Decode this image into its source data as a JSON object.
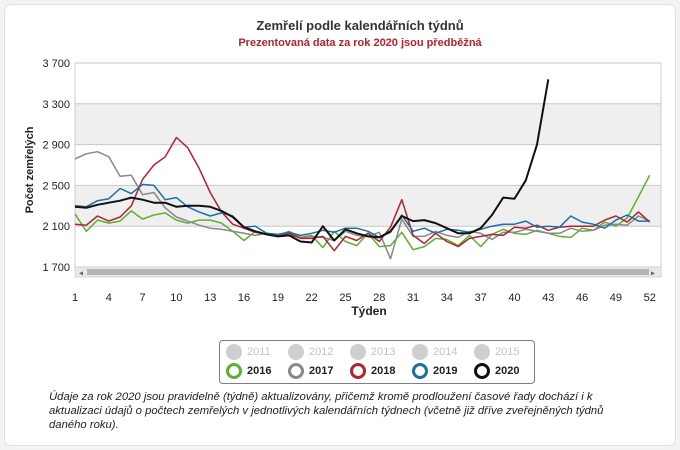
{
  "chart_data": {
    "type": "line",
    "title": "Zemřelí podle kalendářních týdnů",
    "subtitle": "Prezentovaná data za rok 2020 jsou předběžná",
    "xlabel": "Týden",
    "ylabel": "Počet zemřelých",
    "ylim": [
      1700,
      3700
    ],
    "xlim": [
      1,
      53
    ],
    "yticks": [
      1700,
      2100,
      2500,
      2900,
      3300,
      3700
    ],
    "ytick_labels": [
      "1 700",
      "2 100",
      "2 500",
      "2 900",
      "3 300",
      "3 700"
    ],
    "xticks": [
      1,
      4,
      7,
      10,
      13,
      16,
      19,
      22,
      25,
      28,
      31,
      34,
      37,
      40,
      43,
      46,
      49,
      52
    ],
    "grid": true,
    "series": [
      {
        "name": "2016",
        "color": "#5cb030",
        "values": [
          2220,
          2050,
          2160,
          2130,
          2150,
          2250,
          2170,
          2210,
          2230,
          2160,
          2130,
          2160,
          2160,
          2130,
          2050,
          1960,
          2050,
          2020,
          2010,
          2050,
          1990,
          2010,
          1890,
          2050,
          1950,
          1910,
          2030,
          1900,
          1910,
          2040,
          1870,
          1900,
          1980,
          1970,
          1910,
          2010,
          1900,
          2020,
          2070,
          2030,
          2020,
          2060,
          2030,
          2000,
          1990,
          2080,
          2060,
          2140,
          2100,
          2180,
          2390,
          2600
        ]
      },
      {
        "name": "2017",
        "color": "#888888",
        "values": [
          2760,
          2810,
          2830,
          2780,
          2590,
          2600,
          2410,
          2430,
          2280,
          2190,
          2150,
          2110,
          2080,
          2070,
          2050,
          2030,
          2010,
          2030,
          2000,
          2010,
          1990,
          2000,
          1990,
          1960,
          2050,
          2010,
          2000,
          2040,
          1780,
          2170,
          2000,
          2000,
          2050,
          2010,
          1990,
          2050,
          2030,
          1970,
          2040,
          2040,
          2070,
          2050,
          2030,
          2030,
          2080,
          2050,
          2060,
          2110,
          2120,
          2110,
          2200,
          2150
        ]
      },
      {
        "name": "2018",
        "color": "#b32330",
        "values": [
          2120,
          2110,
          2200,
          2150,
          2190,
          2300,
          2560,
          2700,
          2780,
          2970,
          2870,
          2670,
          2430,
          2240,
          2120,
          2080,
          2040,
          2020,
          2000,
          2030,
          1980,
          1980,
          2000,
          1860,
          2000,
          1960,
          2030,
          1950,
          2090,
          2360,
          2010,
          1930,
          2030,
          1950,
          1900,
          1980,
          2000,
          2020,
          2010,
          2090,
          2080,
          2110,
          2060,
          2090,
          2100,
          2100,
          2100,
          2160,
          2200,
          2140,
          2240,
          2140
        ]
      },
      {
        "name": "2019",
        "color": "#1c6fa2",
        "values": [
          2300,
          2290,
          2350,
          2370,
          2470,
          2420,
          2510,
          2500,
          2360,
          2380,
          2290,
          2240,
          2200,
          2230,
          2200,
          2090,
          2100,
          2030,
          2020,
          2040,
          2010,
          2030,
          2060,
          2040,
          2080,
          2080,
          2050,
          1990,
          2040,
          2210,
          2050,
          2080,
          2030,
          2070,
          2060,
          2040,
          2070,
          2100,
          2120,
          2120,
          2150,
          2090,
          2100,
          2090,
          2200,
          2140,
          2120,
          2080,
          2160,
          2210,
          2150,
          2150
        ]
      },
      {
        "name": "2020",
        "color": "#111111",
        "values": [
          2290,
          2280,
          2310,
          2330,
          2350,
          2380,
          2360,
          2330,
          2330,
          2290,
          2300,
          2300,
          2290,
          2250,
          2190,
          2090,
          2050,
          2020,
          2000,
          2010,
          1950,
          1940,
          2100,
          1960,
          2070,
          2030,
          2000,
          1990,
          2050,
          2200,
          2150,
          2160,
          2130,
          2080,
          2030,
          2030,
          2080,
          2210,
          2380,
          2370,
          2550,
          2900,
          3540
        ]
      }
    ]
  },
  "legend": [
    {
      "label": "2011",
      "active": false
    },
    {
      "label": "2012",
      "active": false
    },
    {
      "label": "2013",
      "active": false
    },
    {
      "label": "2014",
      "active": false
    },
    {
      "label": "2015",
      "active": false
    },
    {
      "label": "2016",
      "active": true,
      "color": "#5cb030"
    },
    {
      "label": "2017",
      "active": true,
      "color": "#888888"
    },
    {
      "label": "2018",
      "active": true,
      "color": "#b32330"
    },
    {
      "label": "2019",
      "active": true,
      "color": "#1c6fa2"
    },
    {
      "label": "2020",
      "active": true,
      "color": "#111111"
    }
  ],
  "note": "Údaje za rok 2020 jsou pravidelně (týdně) aktualizovány, přičemž kromě prodloužení časové řady dochází i k aktualizaci údajů o počtech zemřelých v jednotlivých kalendářních týdnech (včetně již dříve zveřejněných týdnů daného roku).",
  "scrollbar": {
    "left_arrow": "◂",
    "right_arrow": "▸"
  }
}
